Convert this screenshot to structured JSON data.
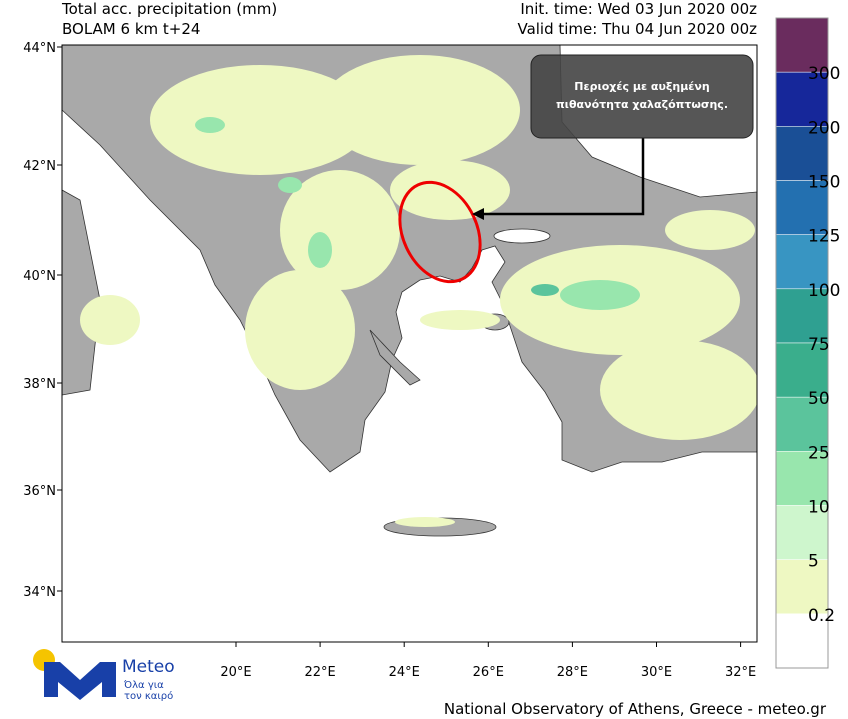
{
  "header": {
    "title": "Total acc. precipitation (mm)",
    "model": "BOLAM 6 km t+24",
    "init_time": "Init. time: Wed 03 Jun 2020 00z",
    "valid_time": "Valid time: Thu 04 Jun 2020 00z"
  },
  "map": {
    "lat_labels": [
      "44°N",
      "42°N",
      "40°N",
      "38°N",
      "36°N",
      "34°N"
    ],
    "lon_labels": [
      "20°E",
      "22°E",
      "24°E",
      "26°E",
      "28°E",
      "30°E",
      "32°E"
    ]
  },
  "annotation": {
    "lines": [
      "Περιοχές με  αυξημένη",
      "πιθανότητα χαλαζόπτωσης."
    ]
  },
  "colorbar": {
    "colors": [
      "#6a2c5e",
      "#16279a",
      "#1a4f96",
      "#2370b0",
      "#3895c2",
      "#2fa091",
      "#3aae8c",
      "#5bc49c",
      "#98e6ad",
      "#cef6cd",
      "#eef8c2",
      "#ffffff"
    ],
    "labels": [
      "300",
      "200",
      "150",
      "125",
      "100",
      "75",
      "50",
      "25",
      "10",
      "5",
      "0.2"
    ]
  },
  "logo": {
    "name": "Meteo",
    "tagline_1": "Όλα για",
    "tagline_2": "τον καιρό"
  },
  "footer": "National Observatory of Athens, Greece - meteo.gr"
}
